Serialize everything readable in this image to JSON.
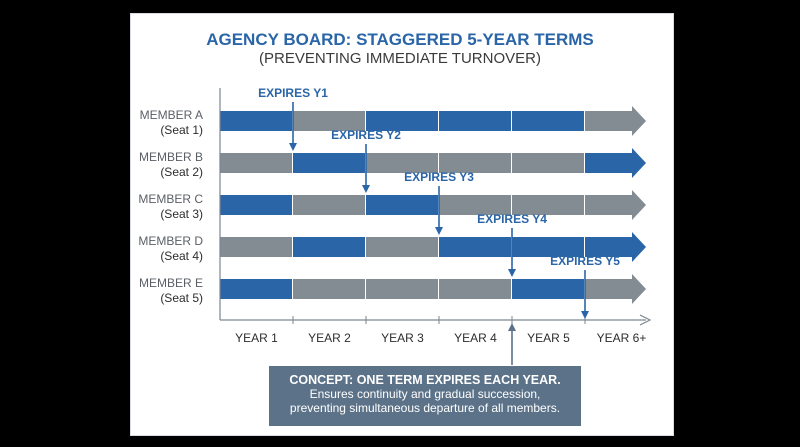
{
  "title": "AGENCY BOARD: STAGGERED 5-YEAR TERMS",
  "subtitle": "(PREVENTING IMMEDIATE TURNOVER)",
  "colors": {
    "active": "#2a65a8",
    "inactive": "#838b93",
    "accent": "#2a65a8",
    "concept_bg": "#5c7289"
  },
  "years": [
    "YEAR 1",
    "YEAR 2",
    "YEAR 3",
    "YEAR 4",
    "YEAR 5",
    "YEAR 6+"
  ],
  "members": [
    {
      "name": "MEMBER A",
      "seat": "(Seat 1)",
      "segments": [
        "active",
        "inactive",
        "active",
        "active",
        "active",
        "inactive"
      ],
      "expires_label": "EXPIRES Y1",
      "expires_year": 1
    },
    {
      "name": "MEMBER B",
      "seat": "(Seat 2)",
      "segments": [
        "inactive",
        "active",
        "inactive",
        "inactive",
        "inactive",
        "active"
      ],
      "expires_label": "EXPIRES Y2",
      "expires_year": 2
    },
    {
      "name": "MEMBER C",
      "seat": "(Seat 3)",
      "segments": [
        "active",
        "inactive",
        "active",
        "inactive",
        "inactive",
        "inactive"
      ],
      "expires_label": "EXPIRES Y3",
      "expires_year": 3
    },
    {
      "name": "MEMBER D",
      "seat": "(Seat 4)",
      "segments": [
        "inactive",
        "active",
        "inactive",
        "active",
        "active",
        "active"
      ],
      "expires_label": "EXPIRES Y4",
      "expires_year": 4
    },
    {
      "name": "MEMBER E",
      "seat": "(Seat 5)",
      "segments": [
        "active",
        "inactive",
        "inactive",
        "inactive",
        "active",
        "inactive"
      ],
      "expires_label": "EXPIRES Y5",
      "expires_year": 5
    }
  ],
  "concept": {
    "title": "CONCEPT: ONE TERM EXPIRES EACH YEAR.",
    "line1": "Ensures continuity and gradual succession,",
    "line2": "preventing simultaneous departure of all members."
  }
}
